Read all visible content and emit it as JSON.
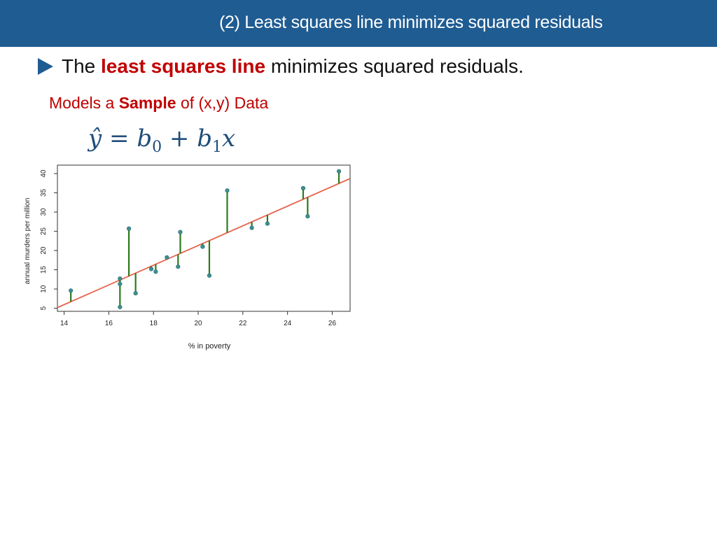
{
  "header": {
    "title": "(2) Least squares line minimizes squared residuals"
  },
  "bullet": {
    "prefix": "The",
    "emphasis": "least squares line",
    "suffix": "minimizes squared residuals."
  },
  "subtitle": {
    "prefix": "Models a",
    "emphasis": "Sample",
    "suffix": "of (x,y) Data"
  },
  "equation": {
    "lhs": "ŷ",
    "equals": "=",
    "b": "b",
    "sub0": "0",
    "plus": "+",
    "sub1": "1",
    "x": "x"
  },
  "colors": {
    "header_bg": "#1f5c92",
    "accent_red": "#c00000",
    "equation_blue": "#1f4e79",
    "fit_line": "#e8644d",
    "residual": "#2d7a1e",
    "point": "#3e8f8f"
  },
  "chart_data": {
    "type": "scatter",
    "xlabel": "% in poverty",
    "ylabel": "annual murders per million",
    "xlim": [
      13.7,
      26.8
    ],
    "ylim": [
      4.2,
      42.2
    ],
    "xticks": [
      14,
      16,
      18,
      20,
      22,
      24,
      26
    ],
    "yticks": [
      5,
      10,
      15,
      20,
      25,
      30,
      35,
      40
    ],
    "grid": false,
    "points": [
      {
        "x": 14.3,
        "y": 9.6
      },
      {
        "x": 16.5,
        "y": 12.7
      },
      {
        "x": 16.5,
        "y": 11.3
      },
      {
        "x": 16.5,
        "y": 5.3
      },
      {
        "x": 16.9,
        "y": 25.7
      },
      {
        "x": 17.2,
        "y": 8.9
      },
      {
        "x": 17.9,
        "y": 15.2
      },
      {
        "x": 18.1,
        "y": 14.5
      },
      {
        "x": 18.6,
        "y": 18.2
      },
      {
        "x": 19.1,
        "y": 15.8
      },
      {
        "x": 19.2,
        "y": 24.8
      },
      {
        "x": 20.2,
        "y": 21.0
      },
      {
        "x": 20.5,
        "y": 13.5
      },
      {
        "x": 21.3,
        "y": 35.6
      },
      {
        "x": 22.4,
        "y": 25.9
      },
      {
        "x": 23.1,
        "y": 27.0
      },
      {
        "x": 24.7,
        "y": 36.2
      },
      {
        "x": 24.9,
        "y": 28.9
      },
      {
        "x": 26.3,
        "y": 40.6
      }
    ],
    "fit_line": {
      "intercept": -29.9,
      "slope": 2.56
    }
  }
}
